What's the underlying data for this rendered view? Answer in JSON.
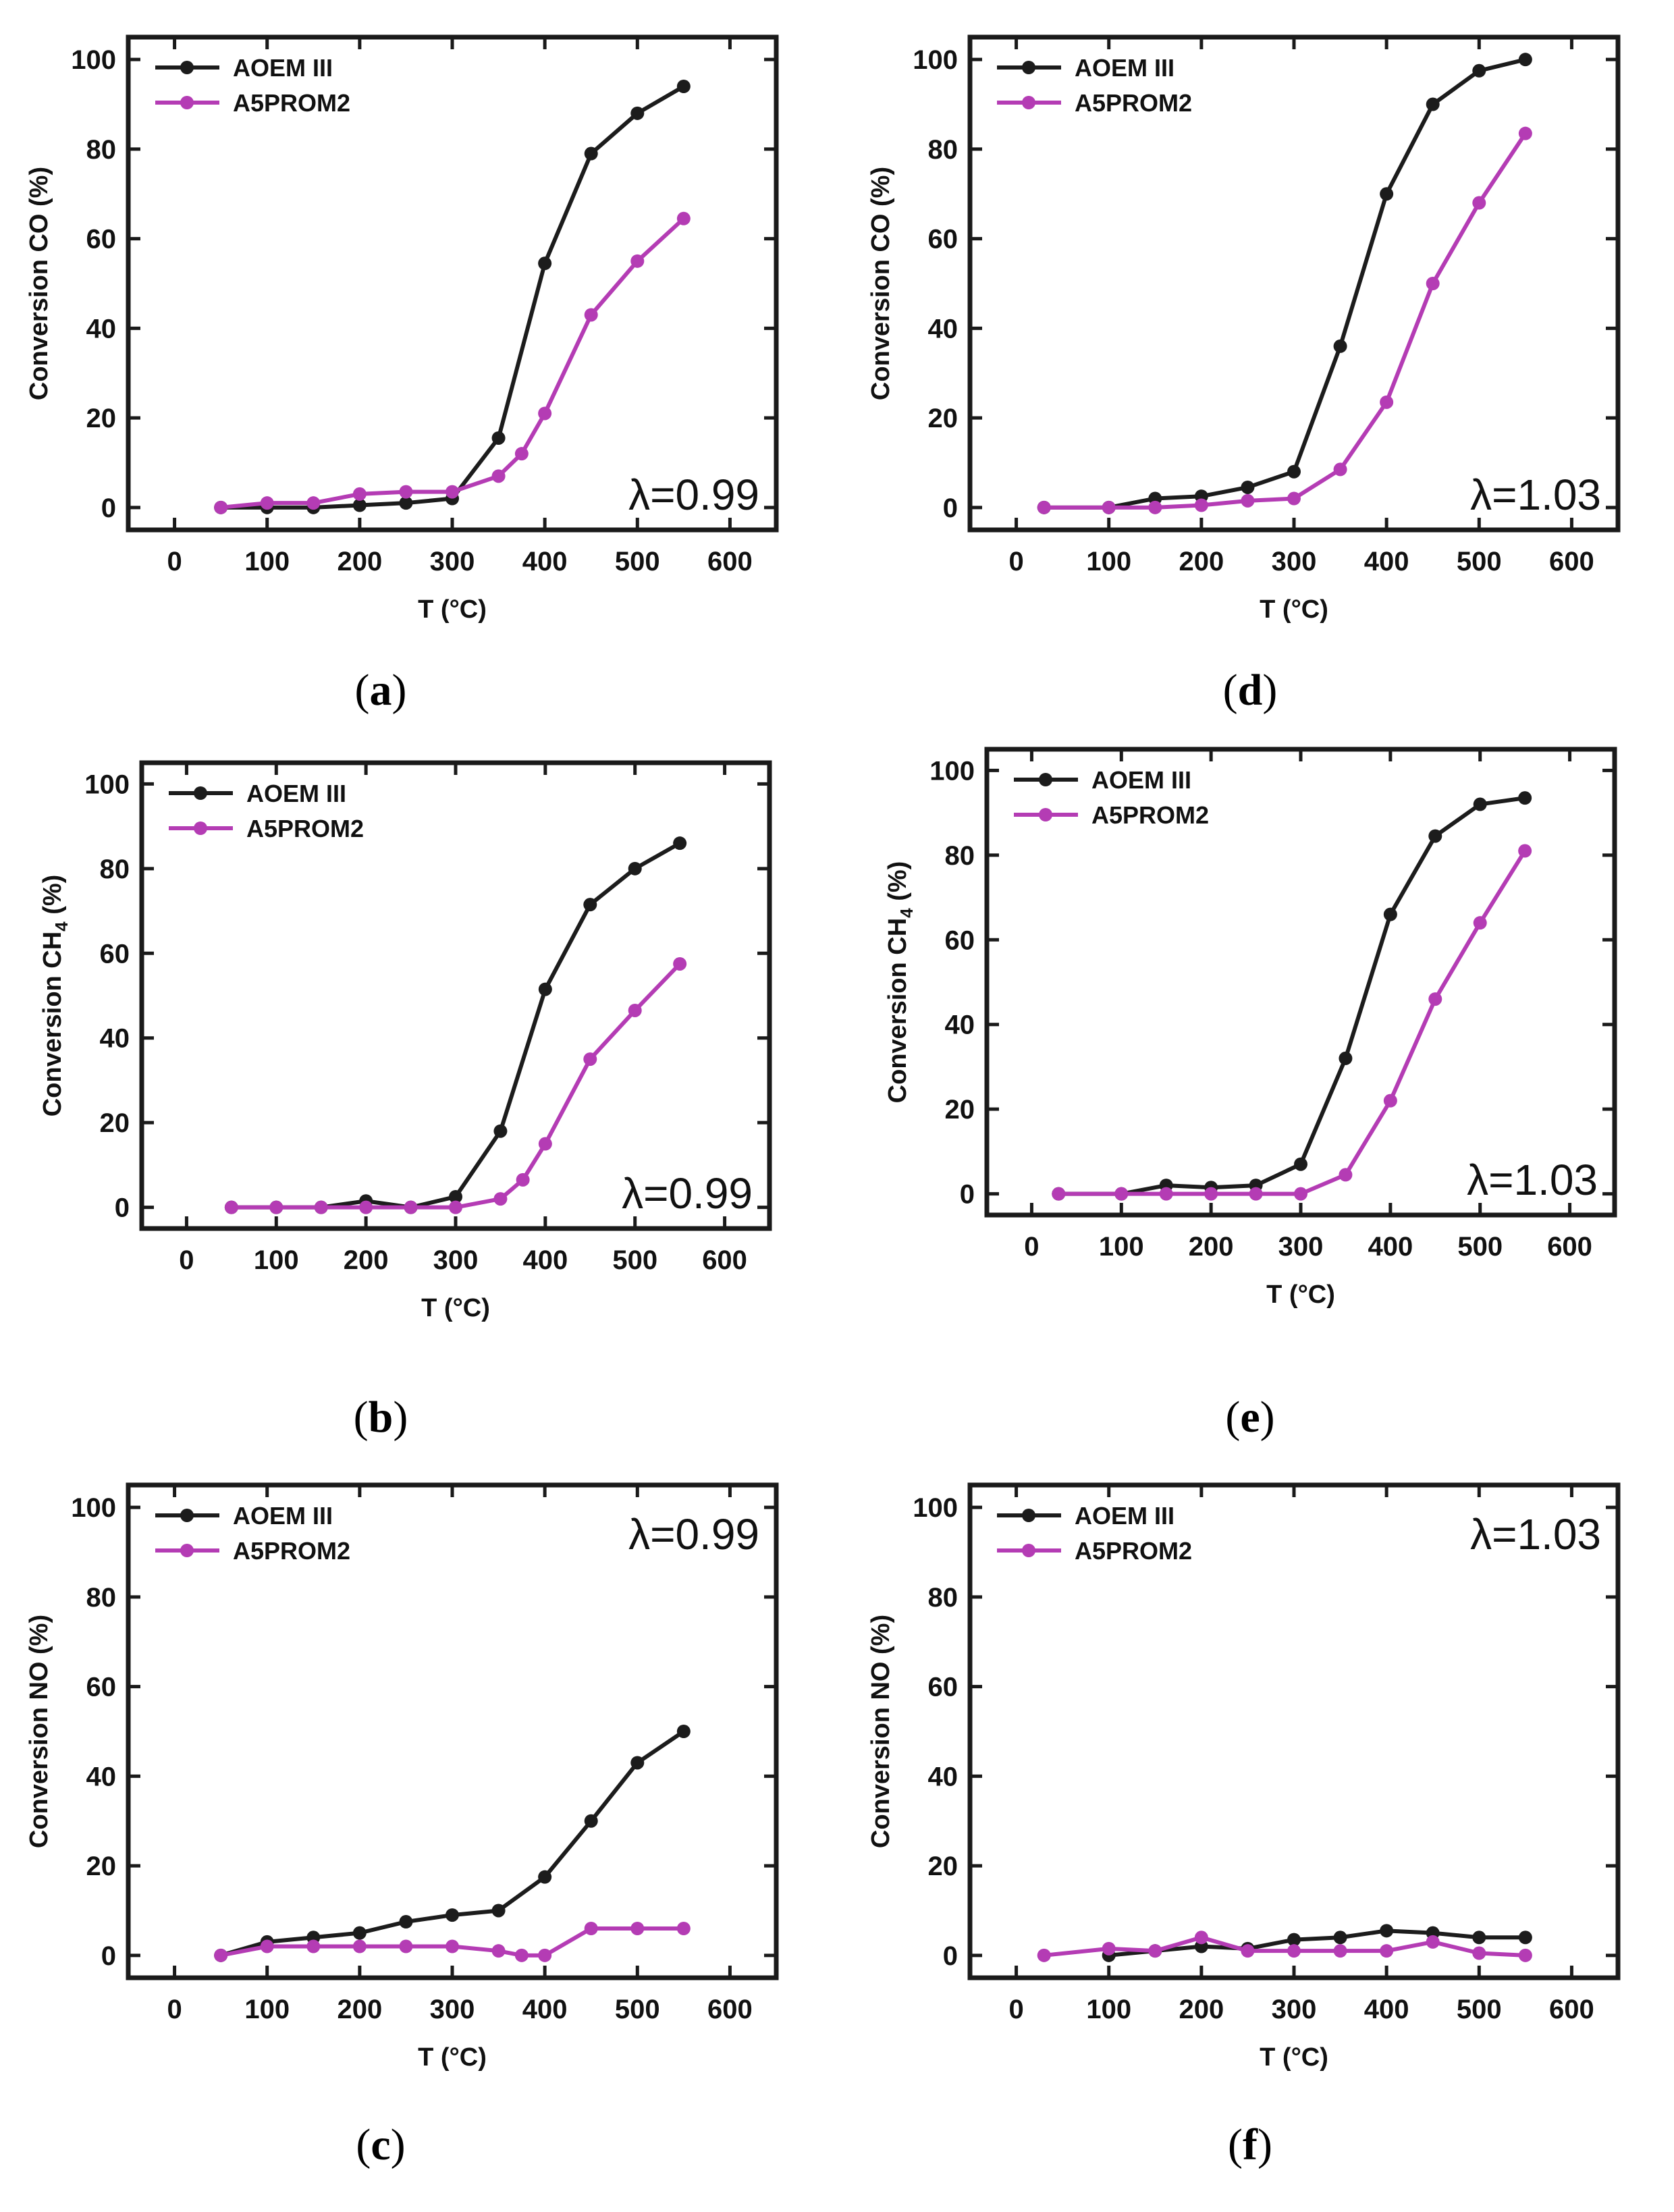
{
  "colors": {
    "series_black": "#1c1c1c",
    "series_magenta": "#b43cb4",
    "axis": "#1a1a1a"
  },
  "chart_data": [
    {
      "id": "a",
      "type": "line",
      "caption_letter": "a",
      "title": "",
      "xlabel": "T (°C)",
      "ylabel": "Conversion CO (%)",
      "ylabel_subscript": "",
      "ylabel_suffix": "",
      "xlim": [
        -50,
        650
      ],
      "ylim": [
        -5,
        105
      ],
      "xticks": [
        0,
        100,
        200,
        300,
        400,
        500,
        600
      ],
      "yticks": [
        0,
        20,
        40,
        60,
        80,
        100
      ],
      "annotation": "λ=0.99",
      "annotation_place": "bottom-right",
      "legend_place": "top-left",
      "series": [
        {
          "name": "AOEM III",
          "color": "#1c1c1c",
          "x": [
            50,
            100,
            150,
            200,
            250,
            300,
            350,
            400,
            450,
            500,
            550
          ],
          "y": [
            0,
            0,
            0,
            0.5,
            1,
            2,
            15.5,
            54.5,
            79,
            88,
            94
          ]
        },
        {
          "name": "A5PROM2",
          "color": "#b43cb4",
          "x": [
            50,
            100,
            150,
            200,
            250,
            300,
            350,
            375,
            400,
            450,
            500,
            550
          ],
          "y": [
            0,
            1,
            1,
            3,
            3.5,
            3.5,
            7,
            12,
            21,
            43,
            55,
            64.5
          ]
        }
      ]
    },
    {
      "id": "d",
      "type": "line",
      "caption_letter": "d",
      "title": "",
      "xlabel": "T (°C)",
      "ylabel": "Conversion CO (%)",
      "ylabel_subscript": "",
      "ylabel_suffix": "",
      "xlim": [
        -50,
        650
      ],
      "ylim": [
        -5,
        105
      ],
      "xticks": [
        0,
        100,
        200,
        300,
        400,
        500,
        600
      ],
      "yticks": [
        0,
        20,
        40,
        60,
        80,
        100
      ],
      "annotation": "λ=1.03",
      "annotation_place": "bottom-right",
      "legend_place": "top-left",
      "series": [
        {
          "name": "AOEM III",
          "color": "#1c1c1c",
          "x": [
            30,
            100,
            150,
            200,
            250,
            300,
            350,
            400,
            450,
            500,
            550
          ],
          "y": [
            0,
            0,
            2,
            2.5,
            4.5,
            8,
            36,
            70,
            90,
            97.5,
            100
          ]
        },
        {
          "name": "A5PROM2",
          "color": "#b43cb4",
          "x": [
            30,
            100,
            150,
            200,
            250,
            300,
            350,
            400,
            450,
            500,
            550
          ],
          "y": [
            0,
            0,
            0,
            0.5,
            1.5,
            2,
            8.5,
            23.5,
            50,
            68,
            83.5
          ]
        }
      ]
    },
    {
      "id": "b",
      "type": "line",
      "caption_letter": "b",
      "title": "",
      "xlabel": "T (°C)",
      "ylabel": "Conversion CH",
      "ylabel_subscript": "4",
      "ylabel_suffix": " (%)",
      "xlim": [
        -50,
        650
      ],
      "ylim": [
        -5,
        105
      ],
      "xticks": [
        0,
        100,
        200,
        300,
        400,
        500,
        600
      ],
      "yticks": [
        0,
        20,
        40,
        60,
        80,
        100
      ],
      "annotation": "λ=0.99",
      "annotation_place": "bottom-right",
      "legend_place": "top-left",
      "series": [
        {
          "name": "AOEM III",
          "color": "#1c1c1c",
          "x": [
            50,
            100,
            150,
            200,
            250,
            300,
            350,
            400,
            450,
            500,
            550
          ],
          "y": [
            0,
            0,
            0,
            1.5,
            0,
            2.5,
            18,
            51.5,
            71.5,
            80,
            86
          ]
        },
        {
          "name": "A5PROM2",
          "color": "#b43cb4",
          "x": [
            50,
            100,
            150,
            200,
            250,
            300,
            350,
            375,
            400,
            450,
            500,
            550
          ],
          "y": [
            0,
            0,
            0,
            0,
            0,
            0,
            2,
            6.5,
            15,
            35,
            46.5,
            57.5
          ]
        }
      ]
    },
    {
      "id": "e",
      "type": "line",
      "caption_letter": "e",
      "title": "",
      "xlabel": "T (°C)",
      "ylabel": "Conversion CH",
      "ylabel_subscript": "4",
      "ylabel_suffix": " (%)",
      "xlim": [
        -50,
        650
      ],
      "ylim": [
        -5,
        105
      ],
      "xticks": [
        0,
        100,
        200,
        300,
        400,
        500,
        600
      ],
      "yticks": [
        0,
        20,
        40,
        60,
        80,
        100
      ],
      "annotation": "λ=1.03",
      "annotation_place": "bottom-right",
      "legend_place": "top-left",
      "series": [
        {
          "name": "AOEM III",
          "color": "#1c1c1c",
          "x": [
            30,
            100,
            150,
            200,
            250,
            300,
            350,
            400,
            450,
            500,
            550
          ],
          "y": [
            0,
            0,
            2,
            1.5,
            2,
            7,
            32,
            66,
            84.5,
            92,
            93.5
          ]
        },
        {
          "name": "A5PROM2",
          "color": "#b43cb4",
          "x": [
            30,
            100,
            150,
            200,
            250,
            300,
            350,
            400,
            450,
            500,
            550
          ],
          "y": [
            0,
            0,
            0,
            0,
            0,
            0,
            4.5,
            22,
            46,
            64,
            81
          ]
        }
      ]
    },
    {
      "id": "c",
      "type": "line",
      "caption_letter": "c",
      "title": "",
      "xlabel": "T (°C)",
      "ylabel": "Conversion NO (%)",
      "ylabel_subscript": "",
      "ylabel_suffix": "",
      "xlim": [
        -50,
        650
      ],
      "ylim": [
        -5,
        105
      ],
      "xticks": [
        0,
        100,
        200,
        300,
        400,
        500,
        600
      ],
      "yticks": [
        0,
        20,
        40,
        60,
        80,
        100
      ],
      "annotation": "λ=0.99",
      "annotation_place": "top-right",
      "legend_place": "top-left",
      "series": [
        {
          "name": "AOEM III",
          "color": "#1c1c1c",
          "x": [
            50,
            100,
            150,
            200,
            250,
            300,
            350,
            400,
            450,
            500,
            550
          ],
          "y": [
            0,
            3,
            4,
            5,
            7.5,
            9,
            10,
            17.5,
            30,
            43,
            50
          ]
        },
        {
          "name": "A5PROM2",
          "color": "#b43cb4",
          "x": [
            50,
            100,
            150,
            200,
            250,
            300,
            350,
            375,
            400,
            450,
            500,
            550
          ],
          "y": [
            0,
            2,
            2,
            2,
            2,
            2,
            1,
            0,
            0,
            6,
            6,
            6
          ]
        }
      ]
    },
    {
      "id": "f",
      "type": "line",
      "caption_letter": "f",
      "title": "",
      "xlabel": "T (°C)",
      "ylabel": "Conversion NO (%)",
      "ylabel_subscript": "",
      "ylabel_suffix": "",
      "xlim": [
        -50,
        650
      ],
      "ylim": [
        -5,
        105
      ],
      "xticks": [
        0,
        100,
        200,
        300,
        400,
        500,
        600
      ],
      "yticks": [
        0,
        20,
        40,
        60,
        80,
        100
      ],
      "annotation": "λ=1.03",
      "annotation_place": "top-right",
      "legend_place": "top-left",
      "series": [
        {
          "name": "AOEM III",
          "color": "#1c1c1c",
          "x": [
            100,
            150,
            200,
            250,
            300,
            350,
            400,
            450,
            500,
            550
          ],
          "y": [
            0,
            1,
            2,
            1.5,
            3.5,
            4,
            5.5,
            5,
            4,
            4
          ]
        },
        {
          "name": "A5PROM2",
          "color": "#b43cb4",
          "x": [
            30,
            100,
            150,
            200,
            250,
            300,
            350,
            400,
            450,
            500,
            550
          ],
          "y": [
            0,
            1.5,
            1,
            4,
            1,
            1,
            1,
            1,
            3,
            0.5,
            0
          ]
        }
      ]
    }
  ]
}
